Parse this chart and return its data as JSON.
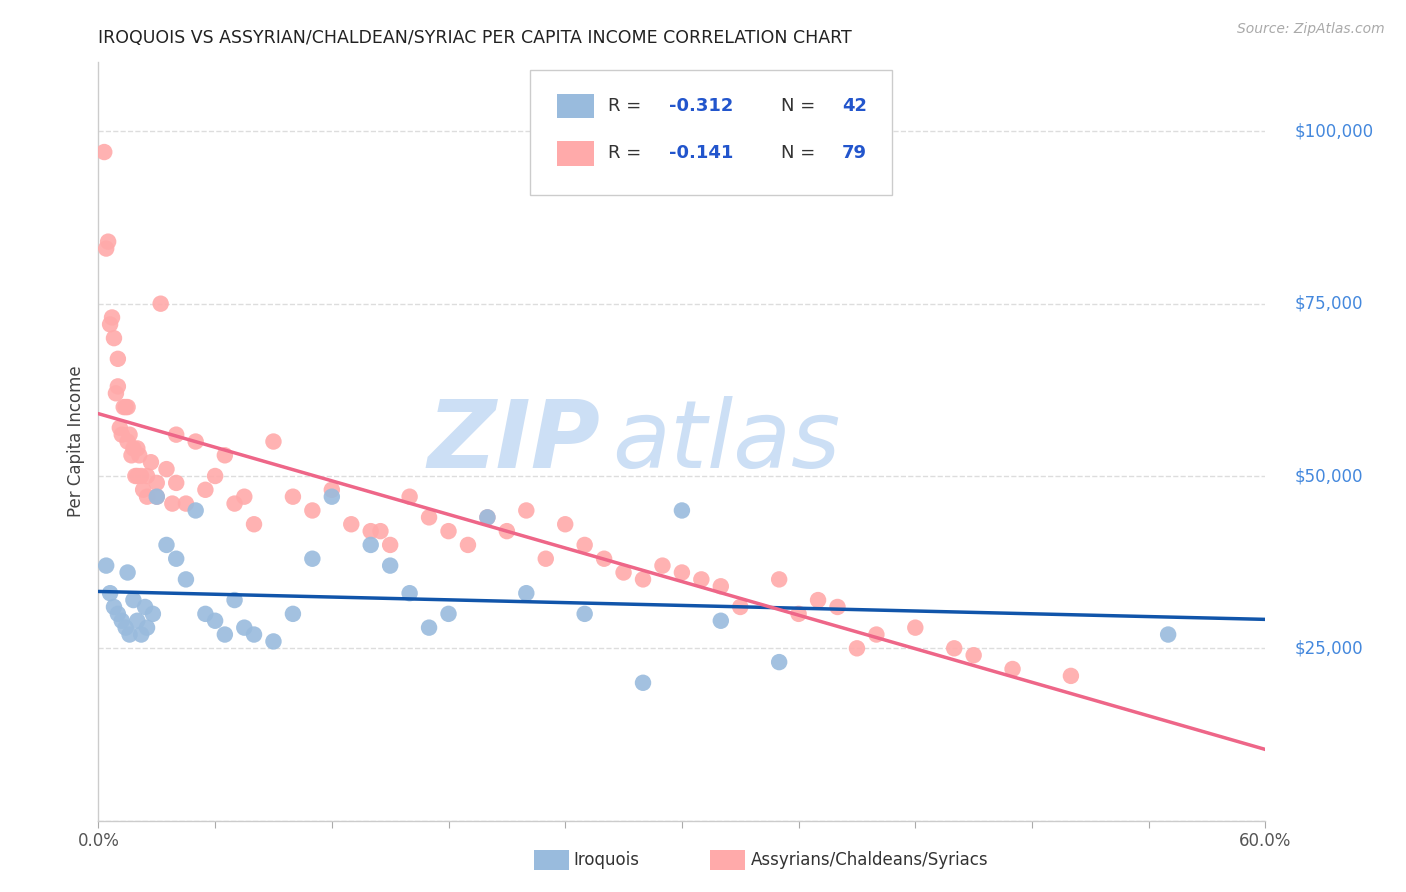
{
  "title": "IROQUOIS VS ASSYRIAN/CHALDEAN/SYRIAC PER CAPITA INCOME CORRELATION CHART",
  "source": "Source: ZipAtlas.com",
  "ylabel": "Per Capita Income",
  "ytick_vals": [
    0,
    25000,
    50000,
    75000,
    100000
  ],
  "ytick_labels": [
    "",
    "$25,000",
    "$50,000",
    "$75,000",
    "$100,000"
  ],
  "ylim": [
    0,
    110000
  ],
  "xlim": [
    0,
    60
  ],
  "legend_r_blue": "-0.312",
  "legend_n_blue": "42",
  "legend_r_pink": "-0.141",
  "legend_n_pink": "79",
  "blue_scatter_color": "#99BBDD",
  "pink_scatter_color": "#FFAAAA",
  "blue_line_color": "#1155AA",
  "pink_line_color": "#EE6688",
  "dash_line_color": "#BBBBCC",
  "watermark_zip": "ZIP",
  "watermark_atlas": "atlas",
  "blue_scatter_x": [
    0.4,
    0.6,
    0.8,
    1.0,
    1.2,
    1.4,
    1.5,
    1.6,
    1.8,
    2.0,
    2.2,
    2.4,
    2.5,
    2.8,
    3.0,
    3.5,
    4.0,
    4.5,
    5.0,
    5.5,
    6.0,
    6.5,
    7.0,
    7.5,
    8.0,
    9.0,
    10.0,
    11.0,
    12.0,
    14.0,
    15.0,
    16.0,
    17.0,
    18.0,
    20.0,
    22.0,
    25.0,
    28.0,
    30.0,
    32.0,
    35.0,
    55.0
  ],
  "blue_scatter_y": [
    37000,
    33000,
    31000,
    30000,
    29000,
    28000,
    36000,
    27000,
    32000,
    29000,
    27000,
    31000,
    28000,
    30000,
    47000,
    40000,
    38000,
    35000,
    45000,
    30000,
    29000,
    27000,
    32000,
    28000,
    27000,
    26000,
    30000,
    38000,
    47000,
    40000,
    37000,
    33000,
    28000,
    30000,
    44000,
    33000,
    30000,
    20000,
    45000,
    29000,
    23000,
    27000
  ],
  "pink_scatter_x": [
    0.3,
    0.4,
    0.5,
    0.6,
    0.7,
    0.8,
    0.9,
    1.0,
    1.0,
    1.1,
    1.2,
    1.3,
    1.4,
    1.5,
    1.5,
    1.6,
    1.7,
    1.8,
    1.9,
    2.0,
    2.0,
    2.1,
    2.2,
    2.3,
    2.5,
    2.5,
    2.7,
    3.0,
    3.0,
    3.2,
    3.5,
    3.8,
    4.0,
    4.0,
    4.5,
    5.0,
    5.5,
    6.0,
    6.5,
    7.0,
    7.5,
    8.0,
    9.0,
    10.0,
    11.0,
    12.0,
    13.0,
    14.0,
    14.5,
    15.0,
    16.0,
    17.0,
    18.0,
    19.0,
    20.0,
    21.0,
    22.0,
    23.0,
    24.0,
    25.0,
    26.0,
    27.0,
    28.0,
    29.0,
    30.0,
    31.0,
    32.0,
    33.0,
    35.0,
    36.0,
    37.0,
    38.0,
    39.0,
    40.0,
    42.0,
    44.0,
    45.0,
    47.0,
    50.0
  ],
  "pink_scatter_y": [
    97000,
    83000,
    84000,
    72000,
    73000,
    70000,
    62000,
    63000,
    67000,
    57000,
    56000,
    60000,
    60000,
    55000,
    60000,
    56000,
    53000,
    54000,
    50000,
    54000,
    50000,
    53000,
    50000,
    48000,
    50000,
    47000,
    52000,
    49000,
    47000,
    75000,
    51000,
    46000,
    49000,
    56000,
    46000,
    55000,
    48000,
    50000,
    53000,
    46000,
    47000,
    43000,
    55000,
    47000,
    45000,
    48000,
    43000,
    42000,
    42000,
    40000,
    47000,
    44000,
    42000,
    40000,
    44000,
    42000,
    45000,
    38000,
    43000,
    40000,
    38000,
    36000,
    35000,
    37000,
    36000,
    35000,
    34000,
    31000,
    35000,
    30000,
    32000,
    31000,
    25000,
    27000,
    28000,
    25000,
    24000,
    22000,
    21000
  ]
}
